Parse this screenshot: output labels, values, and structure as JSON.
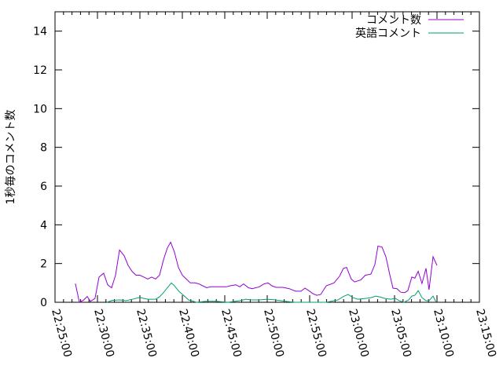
{
  "chart_data": {
    "type": "line",
    "title": "",
    "xlabel": "",
    "ylabel": "1秒毎のコメント数",
    "xlim": [
      "22:25:00",
      "23:15:00"
    ],
    "ylim": [
      0,
      15
    ],
    "x_ticks": [
      "22:25:00",
      "22:30:00",
      "22:35:00",
      "22:40:00",
      "22:45:00",
      "22:50:00",
      "22:55:00",
      "23:00:00",
      "23:05:00",
      "23:10:00",
      "23:15:00"
    ],
    "y_ticks": [
      "0",
      "2",
      "4",
      "6",
      "8",
      "10",
      "12",
      "14"
    ],
    "y_tick_values": [
      0,
      2,
      4,
      6,
      8,
      10,
      12,
      14
    ],
    "grid": false,
    "legend_position": "top-right",
    "series": [
      {
        "name": "コメント数",
        "color": "#9400d3",
        "points": [
          [
            "22:27:24",
            0.97
          ],
          [
            "22:27:52",
            0
          ],
          [
            "22:28:20",
            0.1
          ],
          [
            "22:28:48",
            0.3
          ],
          [
            "22:29:10",
            0.05
          ],
          [
            "22:29:43",
            0.2
          ],
          [
            "22:30:11",
            1.3
          ],
          [
            "22:30:44",
            1.5
          ],
          [
            "22:31:12",
            0.9
          ],
          [
            "22:31:40",
            0.75
          ],
          [
            "22:32:08",
            1.4
          ],
          [
            "22:32:36",
            2.7
          ],
          [
            "22:33:09",
            2.4
          ],
          [
            "22:33:37",
            1.9
          ],
          [
            "22:34:04",
            1.6
          ],
          [
            "22:34:32",
            1.4
          ],
          [
            "22:35:00",
            1.4
          ],
          [
            "22:35:28",
            1.3
          ],
          [
            "22:35:56",
            1.2
          ],
          [
            "22:36:23",
            1.3
          ],
          [
            "22:36:51",
            1.2
          ],
          [
            "22:37:19",
            1.4
          ],
          [
            "22:37:47",
            2.2
          ],
          [
            "22:38:14",
            2.8
          ],
          [
            "22:38:37",
            3.1
          ],
          [
            "22:39:04",
            2.6
          ],
          [
            "22:39:32",
            1.8
          ],
          [
            "22:40:00",
            1.4
          ],
          [
            "22:40:28",
            1.2
          ],
          [
            "22:40:56",
            1.0
          ],
          [
            "22:41:29",
            1.0
          ],
          [
            "22:41:57",
            0.95
          ],
          [
            "22:42:24",
            0.85
          ],
          [
            "22:42:52",
            0.75
          ],
          [
            "22:43:20",
            0.8
          ],
          [
            "22:44:21",
            0.8
          ],
          [
            "22:45:11",
            0.8
          ],
          [
            "22:45:39",
            0.85
          ],
          [
            "22:46:18",
            0.9
          ],
          [
            "22:46:46",
            0.8
          ],
          [
            "22:47:13",
            0.95
          ],
          [
            "22:47:47",
            0.75
          ],
          [
            "22:48:14",
            0.7
          ],
          [
            "22:49:04",
            0.8
          ],
          [
            "22:49:38",
            0.95
          ],
          [
            "22:50:06",
            1.0
          ],
          [
            "22:50:33",
            0.85
          ],
          [
            "22:51:01",
            0.77
          ],
          [
            "22:51:51",
            0.77
          ],
          [
            "22:52:36",
            0.7
          ],
          [
            "22:53:20",
            0.57
          ],
          [
            "22:53:59",
            0.57
          ],
          [
            "22:54:27",
            0.73
          ],
          [
            "22:54:54",
            0.6
          ],
          [
            "22:55:22",
            0.45
          ],
          [
            "22:55:50",
            0.36
          ],
          [
            "22:56:18",
            0.4
          ],
          [
            "22:56:57",
            0.85
          ],
          [
            "22:57:52",
            1.0
          ],
          [
            "22:58:31",
            1.34
          ],
          [
            "22:58:59",
            1.75
          ],
          [
            "22:59:21",
            1.8
          ],
          [
            "22:59:54",
            1.2
          ],
          [
            "23:00:17",
            1.05
          ],
          [
            "23:01:01",
            1.15
          ],
          [
            "23:01:34",
            1.4
          ],
          [
            "23:02:13",
            1.45
          ],
          [
            "23:02:41",
            1.95
          ],
          [
            "23:03:03",
            2.9
          ],
          [
            "23:03:31",
            2.85
          ],
          [
            "23:03:59",
            2.35
          ],
          [
            "23:04:27",
            1.4
          ],
          [
            "23:04:49",
            0.73
          ],
          [
            "23:05:17",
            0.7
          ],
          [
            "23:05:44",
            0.52
          ],
          [
            "23:06:12",
            0.5
          ],
          [
            "23:06:34",
            0.6
          ],
          [
            "23:07:02",
            1.3
          ],
          [
            "23:07:24",
            1.25
          ],
          [
            "23:07:47",
            1.6
          ],
          [
            "23:08:14",
            0.97
          ],
          [
            "23:08:42",
            1.75
          ],
          [
            "23:09:04",
            0.65
          ],
          [
            "23:09:32",
            2.35
          ],
          [
            "23:10:00",
            1.9
          ]
        ]
      },
      {
        "name": "英語コメント",
        "color": "#009e73",
        "points": [
          [
            "22:31:07",
            0
          ],
          [
            "22:31:46",
            0.1
          ],
          [
            "22:32:41",
            0.12
          ],
          [
            "22:33:20",
            0.08
          ],
          [
            "22:34:04",
            0.15
          ],
          [
            "22:35:00",
            0.25
          ],
          [
            "22:35:28",
            0.2
          ],
          [
            "22:35:56",
            0.16
          ],
          [
            "22:36:51",
            0.16
          ],
          [
            "22:37:19",
            0.28
          ],
          [
            "22:37:47",
            0.5
          ],
          [
            "22:38:14",
            0.75
          ],
          [
            "22:38:42",
            1.0
          ],
          [
            "22:39:04",
            0.85
          ],
          [
            "22:39:38",
            0.55
          ],
          [
            "22:40:17",
            0.3
          ],
          [
            "22:40:44",
            0.12
          ],
          [
            "22:41:40",
            0
          ],
          [
            "22:42:47",
            0.05
          ],
          [
            "22:43:59",
            0.05
          ],
          [
            "22:45:22",
            0
          ],
          [
            "22:46:46",
            0.08
          ],
          [
            "22:47:30",
            0.16
          ],
          [
            "22:48:09",
            0.12
          ],
          [
            "22:49:04",
            0.12
          ],
          [
            "22:50:00",
            0.16
          ],
          [
            "22:50:56",
            0.12
          ],
          [
            "22:52:19",
            0.04
          ],
          [
            "22:53:14",
            0
          ],
          [
            "22:55:44",
            0
          ],
          [
            "22:56:57",
            0
          ],
          [
            "22:58:20",
            0.12
          ],
          [
            "22:58:59",
            0.3
          ],
          [
            "22:59:32",
            0.4
          ],
          [
            "23:00:06",
            0.24
          ],
          [
            "23:00:39",
            0.16
          ],
          [
            "23:01:34",
            0.2
          ],
          [
            "23:02:13",
            0.24
          ],
          [
            "23:02:47",
            0.32
          ],
          [
            "23:03:14",
            0.28
          ],
          [
            "23:03:53",
            0.2
          ],
          [
            "23:04:32",
            0.16
          ],
          [
            "23:05:06",
            0.2
          ],
          [
            "23:05:33",
            0.08
          ],
          [
            "23:06:07",
            0
          ],
          [
            "23:06:40",
            0.12
          ],
          [
            "23:07:02",
            0.32
          ],
          [
            "23:07:24",
            0.36
          ],
          [
            "23:07:47",
            0.6
          ],
          [
            "23:08:14",
            0.24
          ],
          [
            "23:08:42",
            0.08
          ],
          [
            "23:09:04",
            0.08
          ],
          [
            "23:09:32",
            0.32
          ],
          [
            "23:09:54",
            0
          ]
        ]
      }
    ]
  }
}
